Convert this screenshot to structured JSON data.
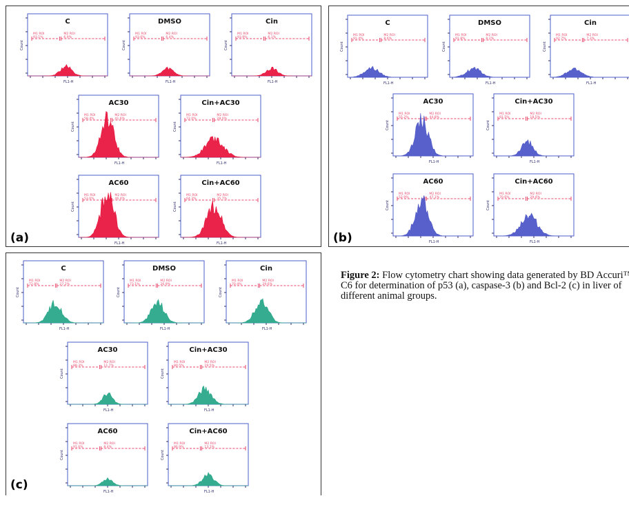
{
  "figure": {
    "caption_label": "Figure 2:",
    "caption_text": "Flow cytometry chart showing data generated by BD Accuri™ C6 for determination of p53 (a), caspase-3 (b) and Bcl-2 (c) in liver of different animal groups."
  },
  "colors": {
    "p53": "#e8173f",
    "caspase3": "#4f59c8",
    "bcl2": "#2aa88a",
    "gate": "#e8486a",
    "axis": "#2b2b6e",
    "frame": "#4a5ec9"
  },
  "axis_text": {
    "ylabel": "Count",
    "xlabel": "FL1-H",
    "gate_left": "M1 ROI",
    "gate_right": "M2 ROI"
  },
  "chart_data": [
    {
      "type": "area",
      "panel": "(a)",
      "marker": "p53",
      "xlabel": "FL1-H",
      "ylabel": "Count",
      "x_scale": "log",
      "series": [
        {
          "name": "C",
          "peak": 0.18,
          "width": 0.07,
          "center": 0.48,
          "left_pct": "93.1%",
          "right_pct": "6.9%"
        },
        {
          "name": "DMSO",
          "peak": 0.15,
          "width": 0.07,
          "center": 0.48,
          "left_pct": "93.6%",
          "right_pct": "6.4%"
        },
        {
          "name": "Cin",
          "peak": 0.15,
          "width": 0.07,
          "center": 0.5,
          "left_pct": "93.9%",
          "right_pct": "6.1%"
        },
        {
          "name": "AC30",
          "peak": 0.75,
          "width": 0.08,
          "center": 0.36,
          "left_pct": "58.4%",
          "right_pct": "41.6%"
        },
        {
          "name": "Cin+AC30",
          "peak": 0.38,
          "width": 0.11,
          "center": 0.42,
          "left_pct": "72.0%",
          "right_pct": "28.0%"
        },
        {
          "name": "AC60",
          "peak": 0.88,
          "width": 0.08,
          "center": 0.36,
          "left_pct": "53.6%",
          "right_pct": "46.4%"
        },
        {
          "name": "Cin+AC60",
          "peak": 0.62,
          "width": 0.09,
          "center": 0.42,
          "left_pct": "64.3%",
          "right_pct": "35.7%"
        }
      ]
    },
    {
      "type": "area",
      "panel": "(b)",
      "marker": "caspase-3",
      "xlabel": "FL1-H",
      "ylabel": "Count",
      "x_scale": "log",
      "series": [
        {
          "name": "C",
          "peak": 0.18,
          "width": 0.09,
          "center": 0.3,
          "left_pct": "91.4%",
          "right_pct": "8.6%"
        },
        {
          "name": "DMSO",
          "peak": 0.17,
          "width": 0.09,
          "center": 0.3,
          "left_pct": "91.8%",
          "right_pct": "8.2%"
        },
        {
          "name": "Cin",
          "peak": 0.16,
          "width": 0.09,
          "center": 0.3,
          "left_pct": "92.7%",
          "right_pct": "7.3%"
        },
        {
          "name": "AC30",
          "peak": 0.7,
          "width": 0.08,
          "center": 0.36,
          "left_pct": "55.2%",
          "right_pct": "44.8%"
        },
        {
          "name": "Cin+AC30",
          "peak": 0.28,
          "width": 0.07,
          "center": 0.42,
          "left_pct": "81.5%",
          "right_pct": "18.5%"
        },
        {
          "name": "AC60",
          "peak": 0.72,
          "width": 0.08,
          "center": 0.36,
          "left_pct": "52.9%",
          "right_pct": "47.1%"
        },
        {
          "name": "Cin+AC60",
          "peak": 0.4,
          "width": 0.1,
          "center": 0.44,
          "left_pct": "70.6%",
          "right_pct": "29.4%"
        }
      ]
    },
    {
      "type": "area",
      "panel": "(c)",
      "marker": "Bcl-2",
      "xlabel": "FL1-H",
      "ylabel": "Count",
      "x_scale": "log",
      "series": [
        {
          "name": "C",
          "peak": 0.4,
          "width": 0.08,
          "center": 0.4,
          "left_pct": "72.8%",
          "right_pct": "27.2%"
        },
        {
          "name": "DMSO",
          "peak": 0.4,
          "width": 0.08,
          "center": 0.42,
          "left_pct": "73.1%",
          "right_pct": "26.9%"
        },
        {
          "name": "Cin",
          "peak": 0.45,
          "width": 0.08,
          "center": 0.44,
          "left_pct": "70.4%",
          "right_pct": "29.6%"
        },
        {
          "name": "AC30",
          "peak": 0.2,
          "width": 0.06,
          "center": 0.5,
          "left_pct": "88.3%",
          "right_pct": "11.7%"
        },
        {
          "name": "Cin+AC30",
          "peak": 0.3,
          "width": 0.08,
          "center": 0.46,
          "left_pct": "80.5%",
          "right_pct": "19.5%"
        },
        {
          "name": "AC60",
          "peak": 0.14,
          "width": 0.06,
          "center": 0.5,
          "left_pct": "91.6%",
          "right_pct": "8.4%"
        },
        {
          "name": "Cin+AC60",
          "peak": 0.22,
          "width": 0.07,
          "center": 0.5,
          "left_pct": "86.9%",
          "right_pct": "13.1%"
        }
      ]
    }
  ]
}
